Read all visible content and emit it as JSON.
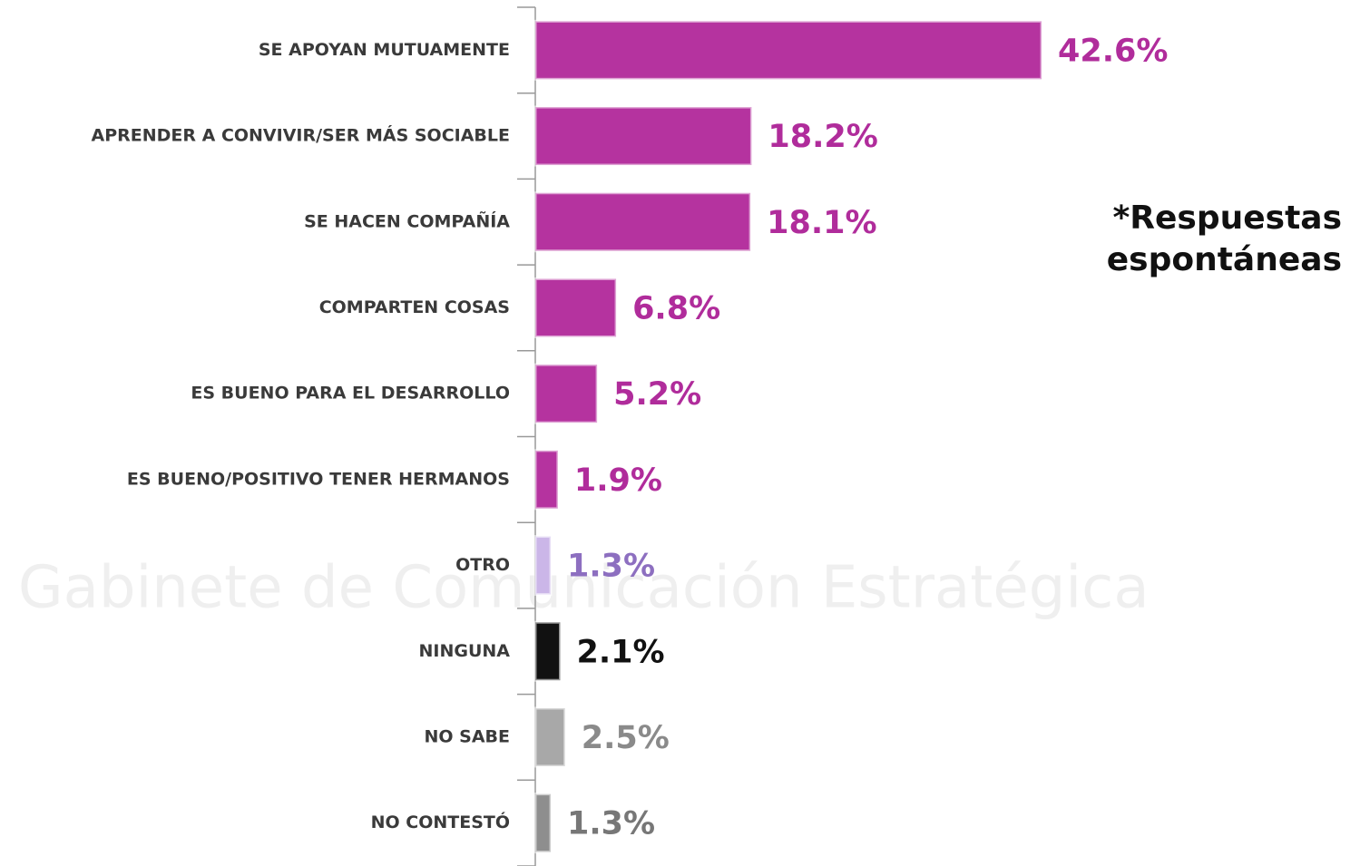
{
  "chart_data": {
    "type": "bar",
    "orientation": "horizontal",
    "watermark": "Gabinete de Comunicación Estratégica",
    "annotation": "*Respuestas espontáneas",
    "categories": [
      "SE APOYAN MUTUAMENTE",
      "APRENDER A CONVIVIR/SER MÁS SOCIABLE",
      "SE HACEN COMPAÑÍA",
      "COMPARTEN COSAS",
      "ES BUENO PARA EL DESARROLLO",
      "ES BUENO/POSITIVO TENER HERMANOS",
      "OTRO",
      "NINGUNA",
      "NO SABE",
      "NO CONTESTÓ"
    ],
    "values": [
      42.6,
      18.2,
      18.1,
      6.8,
      5.2,
      1.9,
      1.3,
      2.1,
      2.5,
      1.3
    ],
    "value_labels": [
      "42.6%",
      "18.2%",
      "18.1%",
      "6.8%",
      "5.2%",
      "1.9%",
      "1.3%",
      "2.1%",
      "2.5%",
      "1.3%"
    ],
    "colors": [
      "#b5339f",
      "#b5339f",
      "#b5339f",
      "#b5339f",
      "#b5339f",
      "#b5339f",
      "#cbb6e8",
      "#111111",
      "#a8a8a8",
      "#8e8e8e"
    ],
    "label_colors": [
      "#b02c9b",
      "#b02c9b",
      "#b02c9b",
      "#b02c9b",
      "#b02c9b",
      "#b02c9b",
      "#8d6fc0",
      "#111111",
      "#8a8a8a",
      "#777777"
    ]
  }
}
